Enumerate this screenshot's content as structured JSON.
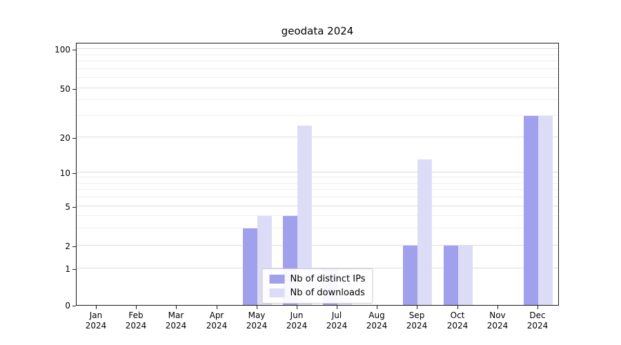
{
  "chart_data": {
    "type": "bar",
    "title": "geodata 2024",
    "categories": [
      "Jan 2024",
      "Feb 2024",
      "Mar 2024",
      "Apr 2024",
      "May 2024",
      "Jun 2024",
      "Jul 2024",
      "Aug 2024",
      "Sep 2024",
      "Oct 2024",
      "Nov 2024",
      "Dec 2024"
    ],
    "series": [
      {
        "name": "Nb of distinct IPs",
        "color": "#a0a0ec",
        "values": [
          0,
          0,
          0,
          0,
          3,
          4,
          1,
          0,
          2,
          2,
          0,
          30
        ]
      },
      {
        "name": "Nb of downloads",
        "color": "#dcdcf6",
        "values": [
          0,
          0,
          0,
          0,
          4,
          25,
          1,
          0,
          13,
          2,
          0,
          30
        ]
      }
    ],
    "yticks": [
      0,
      1,
      2,
      5,
      10,
      20,
      50,
      100
    ],
    "yscale": "symlog",
    "grid": "horizontal-major-and-minor",
    "legend_position": "lower center",
    "legend_labels": [
      "Nb of distinct IPs",
      "Nb of downloads"
    ]
  }
}
